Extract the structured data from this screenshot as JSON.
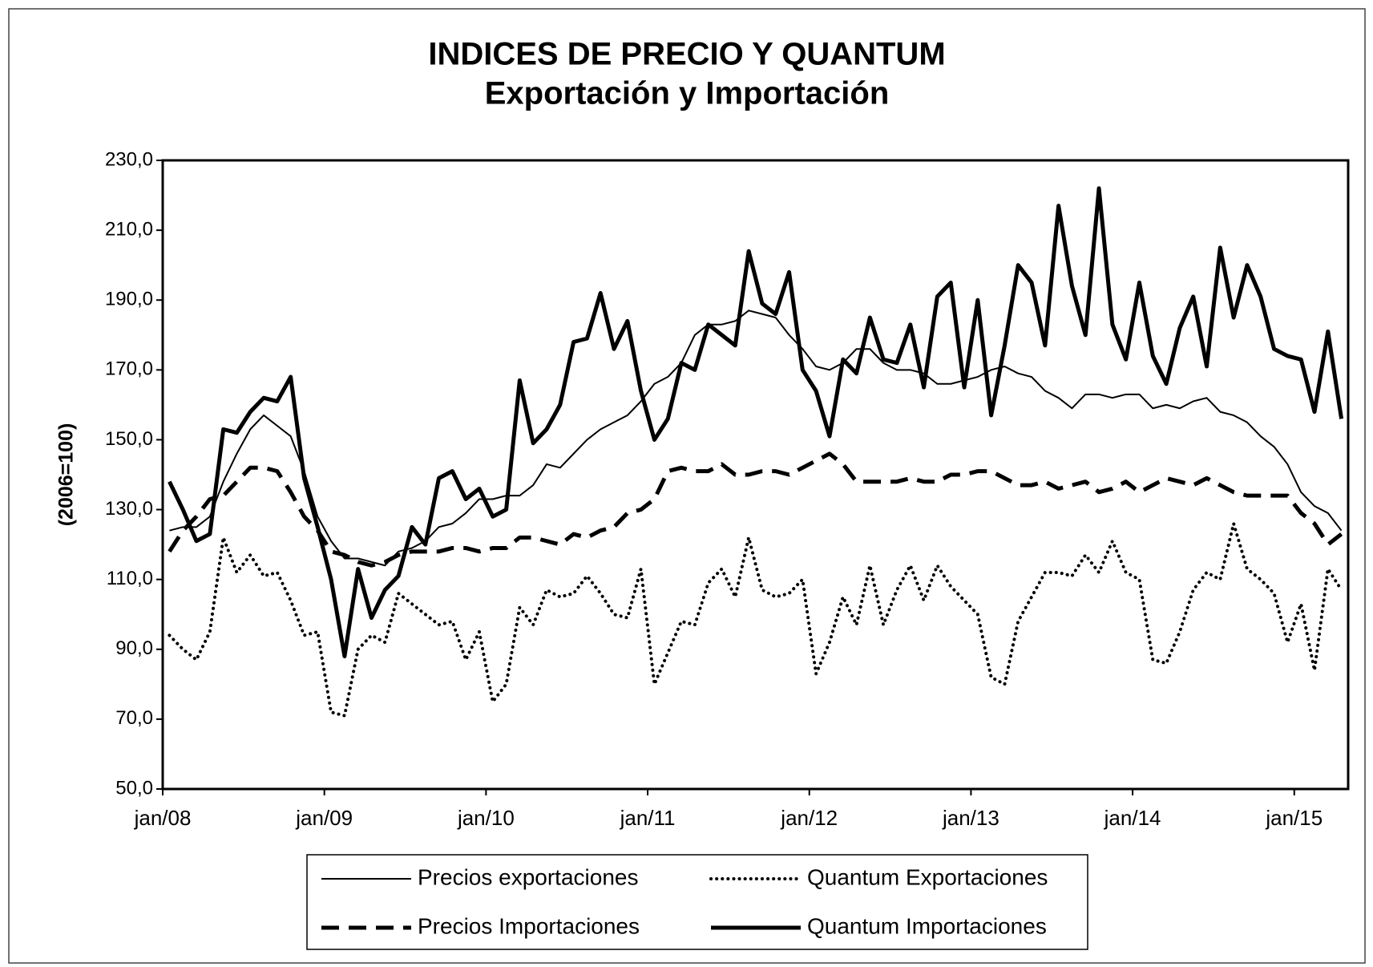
{
  "chart_data": {
    "type": "line",
    "title": "INDICES DE PRECIO Y QUANTUM",
    "subtitle": "Exportación y Importación",
    "y_label": "(2006=100)",
    "categories": [
      "jan/08",
      null,
      null,
      null,
      null,
      null,
      null,
      null,
      null,
      null,
      null,
      null,
      "jan/09",
      null,
      null,
      null,
      null,
      null,
      null,
      null,
      null,
      null,
      null,
      null,
      "jan/10",
      null,
      null,
      null,
      null,
      null,
      null,
      null,
      null,
      null,
      null,
      null,
      "jan/11",
      null,
      null,
      null,
      null,
      null,
      null,
      null,
      null,
      null,
      null,
      null,
      "jan/12",
      null,
      null,
      null,
      null,
      null,
      null,
      null,
      null,
      null,
      null,
      null,
      "jan/13",
      null,
      null,
      null,
      null,
      null,
      null,
      null,
      null,
      null,
      null,
      null,
      "jan/14",
      null,
      null,
      null,
      null,
      null,
      null,
      null,
      null,
      null,
      null,
      null,
      "jan/15",
      null,
      null,
      null
    ],
    "ylim": [
      50,
      230
    ],
    "yticks": [
      {
        "value": 50,
        "label": "50,0"
      },
      {
        "value": 70,
        "label": "70,0"
      },
      {
        "value": 90,
        "label": "90,0"
      },
      {
        "value": 110,
        "label": "110,0"
      },
      {
        "value": 130,
        "label": "130,0"
      },
      {
        "value": 150,
        "label": "150,0"
      },
      {
        "value": 170,
        "label": "170,0"
      },
      {
        "value": 190,
        "label": "190,0"
      },
      {
        "value": 210,
        "label": "210,0"
      },
      {
        "value": 230,
        "label": "230,0"
      }
    ],
    "grid": false,
    "legend": "bottom",
    "series": [
      {
        "name": "Precios exportaciones",
        "color": "#000000",
        "line_style": "solid",
        "line_width": 2,
        "values": [
          124,
          125,
          125,
          128,
          138,
          146,
          153,
          157,
          154,
          151,
          141,
          128,
          121,
          116,
          116,
          115,
          114,
          118,
          119,
          121,
          125,
          126,
          129,
          133,
          133,
          134,
          134,
          137,
          143,
          142,
          146,
          150,
          153,
          155,
          157,
          161,
          166,
          168,
          172,
          180,
          183,
          183,
          184,
          187,
          186,
          185,
          180,
          176,
          171,
          170,
          172,
          176,
          176,
          172,
          170,
          170,
          169,
          166,
          166,
          167,
          168,
          170,
          171,
          169,
          168,
          164,
          162,
          159,
          163,
          163,
          162,
          163,
          163,
          159,
          160,
          159,
          161,
          162,
          158,
          157,
          155,
          151,
          148,
          143,
          135,
          131,
          129,
          124
        ]
      },
      {
        "name": "Quantum Exportaciones",
        "color": "#000000",
        "line_style": "dotted",
        "line_width": 4,
        "values": [
          94,
          90,
          87,
          95,
          122,
          112,
          117,
          111,
          112,
          104,
          94,
          95,
          72,
          71,
          90,
          94,
          92,
          106,
          103,
          100,
          97,
          98,
          87,
          95,
          75,
          80,
          102,
          97,
          107,
          105,
          106,
          111,
          106,
          100,
          99,
          113,
          80,
          89,
          98,
          97,
          109,
          113,
          105,
          122,
          107,
          105,
          106,
          110,
          83,
          92,
          105,
          97,
          114,
          97,
          107,
          114,
          104,
          114,
          108,
          104,
          100,
          82,
          80,
          98,
          105,
          112,
          112,
          111,
          117,
          112,
          121,
          112,
          110,
          87,
          86,
          95,
          107,
          112,
          110,
          126,
          113,
          110,
          106,
          92,
          103,
          84,
          113,
          107
        ]
      },
      {
        "name": "Precios Importaciones",
        "color": "#000000",
        "line_style": "dashed",
        "line_width": 5,
        "values": [
          118,
          124,
          128,
          133,
          134,
          138,
          142,
          142,
          141,
          135,
          128,
          124,
          118,
          117,
          115,
          114,
          115,
          117,
          118,
          118,
          118,
          119,
          119,
          118,
          119,
          119,
          122,
          122,
          121,
          120,
          123,
          122,
          124,
          125,
          129,
          130,
          133,
          141,
          142,
          141,
          141,
          143,
          140,
          140,
          141,
          141,
          140,
          142,
          144,
          146,
          143,
          138,
          138,
          138,
          138,
          139,
          138,
          138,
          140,
          140,
          141,
          141,
          139,
          137,
          137,
          138,
          136,
          137,
          138,
          135,
          136,
          138,
          135,
          137,
          139,
          138,
          137,
          139,
          137,
          135,
          134,
          134,
          134,
          134,
          129,
          126,
          120,
          123
        ]
      },
      {
        "name": "Quantum Importaciones",
        "color": "#000000",
        "line_style": "solid",
        "line_width": 5,
        "values": [
          138,
          130,
          121,
          123,
          153,
          152,
          158,
          162,
          161,
          168,
          139,
          125,
          110,
          88,
          113,
          99,
          107,
          111,
          125,
          120,
          139,
          141,
          133,
          136,
          128,
          130,
          167,
          149,
          153,
          160,
          178,
          179,
          192,
          176,
          184,
          164,
          150,
          156,
          172,
          170,
          183,
          180,
          177,
          204,
          189,
          186,
          198,
          170,
          164,
          151,
          173,
          169,
          185,
          173,
          172,
          183,
          165,
          191,
          195,
          165,
          190,
          157,
          177,
          200,
          195,
          177,
          217,
          194,
          180,
          222,
          183,
          173,
          195,
          174,
          166,
          182,
          191,
          171,
          205,
          185,
          200,
          191,
          176,
          174,
          173,
          158,
          181,
          156
        ]
      }
    ]
  }
}
